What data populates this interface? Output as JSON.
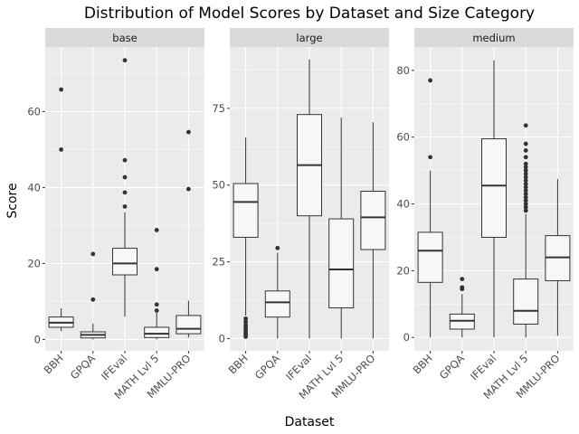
{
  "chart_data": {
    "type": "boxplot",
    "title": "Distribution of Model Scores by Dataset and Size Category",
    "xlabel": "Dataset",
    "ylabel": "Score",
    "categories": [
      "BBH",
      "GPQA",
      "IFEval",
      "MATH Lvl 5",
      "MMLU-PRO"
    ],
    "grid": true,
    "legend": "none",
    "facets": [
      {
        "name": "base",
        "ylim": [
          -3,
          77
        ],
        "yticks": [
          0,
          20,
          40,
          60
        ],
        "boxes": [
          {
            "category": "BBH",
            "min": 2.2,
            "q1": 3.2,
            "median": 4.4,
            "q3": 5.9,
            "max": 8.2,
            "outliers": [
              50.0,
              65.8
            ]
          },
          {
            "category": "GPQA",
            "min": 0.0,
            "q1": 0.4,
            "median": 1.2,
            "q3": 2.0,
            "max": 4.2,
            "outliers": [
              10.5,
              22.5
            ]
          },
          {
            "category": "IFEval",
            "min": 6.0,
            "q1": 17.0,
            "median": 20.0,
            "q3": 24.0,
            "max": 33.5,
            "outliers": [
              35.0,
              38.7,
              42.7,
              47.2,
              73.5
            ]
          },
          {
            "category": "MATH Lvl 5",
            "min": 0.0,
            "q1": 0.5,
            "median": 1.5,
            "q3": 3.2,
            "max": 7.0,
            "outliers": [
              7.6,
              9.2,
              18.5,
              28.8
            ]
          },
          {
            "category": "MMLU-PRO",
            "min": 0.5,
            "q1": 1.5,
            "median": 2.8,
            "q3": 6.3,
            "max": 10.2,
            "outliers": [
              39.6,
              54.6
            ]
          }
        ]
      },
      {
        "name": "large",
        "ylim": [
          -4,
          95
        ],
        "yticks": [
          0,
          25,
          50,
          75
        ],
        "boxes": [
          {
            "category": "BBH",
            "min": 7.5,
            "q1": 33.0,
            "median": 44.5,
            "q3": 50.5,
            "max": 65.5,
            "outliers": [
              0.6,
              1.2,
              1.8,
              2.4,
              3.0,
              3.8,
              4.5,
              5.5,
              6.5
            ]
          },
          {
            "category": "GPQA",
            "min": 0.0,
            "q1": 7.0,
            "median": 11.8,
            "q3": 15.5,
            "max": 28.0,
            "outliers": [
              29.5
            ]
          },
          {
            "category": "IFEval",
            "min": 0.0,
            "q1": 40.0,
            "median": 56.5,
            "q3": 73.0,
            "max": 91.0,
            "outliers": []
          },
          {
            "category": "MATH Lvl 5",
            "min": 0.0,
            "q1": 10.0,
            "median": 22.5,
            "q3": 39.0,
            "max": 72.0,
            "outliers": []
          },
          {
            "category": "MMLU-PRO",
            "min": 0.0,
            "q1": 29.0,
            "median": 39.5,
            "q3": 48.0,
            "max": 70.5,
            "outliers": []
          }
        ]
      },
      {
        "name": "medium",
        "ylim": [
          -4,
          87
        ],
        "yticks": [
          0,
          20,
          40,
          60,
          80
        ],
        "boxes": [
          {
            "category": "BBH",
            "min": 0.0,
            "q1": 16.5,
            "median": 26.0,
            "q3": 31.5,
            "max": 50.0,
            "outliers": [
              54.0,
              77.0
            ]
          },
          {
            "category": "GPQA",
            "min": 0.0,
            "q1": 2.5,
            "median": 5.0,
            "q3": 7.0,
            "max": 13.0,
            "outliers": [
              14.5,
              15.0,
              17.5
            ]
          },
          {
            "category": "IFEval",
            "min": 0.0,
            "q1": 30.0,
            "median": 45.5,
            "q3": 59.5,
            "max": 83.0,
            "outliers": []
          },
          {
            "category": "MATH Lvl 5",
            "min": 0.0,
            "q1": 4.0,
            "median": 8.0,
            "q3": 17.5,
            "max": 37.0,
            "outliers": [
              38,
              39,
              40,
              41,
              42,
              43,
              44,
              45,
              46,
              47,
              48,
              49,
              50,
              51,
              52,
              54,
              56,
              58,
              63.5
            ]
          },
          {
            "category": "MMLU-PRO",
            "min": 0.5,
            "q1": 17.0,
            "median": 24.0,
            "q3": 30.5,
            "max": 47.5,
            "outliers": []
          }
        ]
      }
    ]
  },
  "colors": {
    "panel_bg": "#ebebeb",
    "strip_bg": "#d9d9d9",
    "grid_major": "#ffffff",
    "box_fill": "#f7f7f7",
    "box_stroke": "#333333",
    "outlier": "#333333"
  }
}
